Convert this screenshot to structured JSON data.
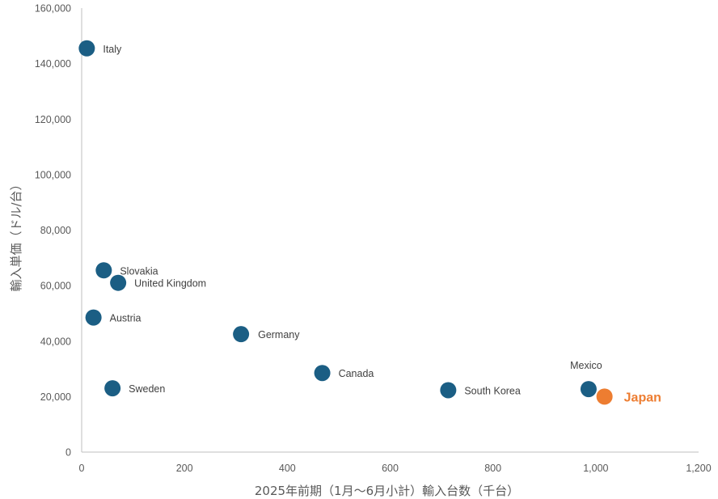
{
  "chart_data": {
    "type": "scatter",
    "title": "",
    "xlabel": "2025年前期（1月～6月小計）輸入台数（千台）",
    "ylabel": "輸入単価（ドル/台）",
    "xlim": [
      0,
      1200
    ],
    "ylim": [
      0,
      160000
    ],
    "x_ticks": [
      0,
      200,
      400,
      600,
      800,
      1000,
      1200
    ],
    "y_ticks": [
      0,
      20000,
      40000,
      60000,
      80000,
      100000,
      120000,
      140000,
      160000
    ],
    "x_tick_labels": [
      "0",
      "200",
      "400",
      "600",
      "800",
      "1,000",
      "1,200"
    ],
    "y_tick_labels": [
      "0",
      "20,000",
      "40,000",
      "60,000",
      "80,000",
      "100,000",
      "120,000",
      "140,000",
      "160,000"
    ],
    "grid": false,
    "colors": {
      "default": "#1B5E84",
      "highlight": "#ED7D31",
      "axis": "#BFBFBF"
    },
    "points": [
      {
        "label": "Italy",
        "x": 10,
        "y": 145500,
        "highlight": false
      },
      {
        "label": "Slovakia",
        "x": 43,
        "y": 65500,
        "highlight": false
      },
      {
        "label": "United Kingdom",
        "x": 71,
        "y": 61000,
        "highlight": false
      },
      {
        "label": "Austria",
        "x": 23,
        "y": 48500,
        "highlight": false
      },
      {
        "label": "Germany",
        "x": 310,
        "y": 42500,
        "highlight": false
      },
      {
        "label": "Sweden",
        "x": 60,
        "y": 23000,
        "highlight": false
      },
      {
        "label": "Canada",
        "x": 468,
        "y": 28500,
        "highlight": false
      },
      {
        "label": "South Korea",
        "x": 713,
        "y": 22300,
        "highlight": false
      },
      {
        "label": "Mexico",
        "x": 986,
        "y": 22700,
        "highlight": false
      },
      {
        "label": "Japan",
        "x": 1017,
        "y": 20000,
        "highlight": true
      }
    ]
  }
}
